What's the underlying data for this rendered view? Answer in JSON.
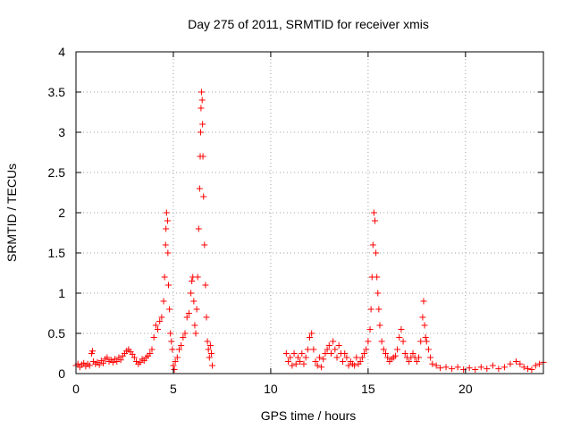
{
  "chart_data": {
    "type": "scatter",
    "title": "Day 275 of 2011, SRMTID for receiver xmis",
    "xlabel": "GPS time / hours",
    "ylabel": "SRMTID / TECUs",
    "xlim": [
      0,
      24
    ],
    "ylim": [
      0,
      4
    ],
    "xticks": [
      0,
      5,
      10,
      15,
      20
    ],
    "xtick_labels": [
      "0",
      "5",
      "10",
      "15",
      "20"
    ],
    "yticks": [
      0,
      0.5,
      1,
      1.5,
      2,
      2.5,
      3,
      3.5,
      4
    ],
    "ytick_labels": [
      "0",
      "0.5",
      "1",
      "1.5",
      "2",
      "2.5",
      "3",
      "3.5",
      "4"
    ],
    "grid": true,
    "marker": "+",
    "color": "#ff0000",
    "series": [
      {
        "name": "SRMTID",
        "points": [
          [
            0.0,
            0.1
          ],
          [
            0.1,
            0.12
          ],
          [
            0.2,
            0.08
          ],
          [
            0.3,
            0.11
          ],
          [
            0.4,
            0.13
          ],
          [
            0.5,
            0.09
          ],
          [
            0.6,
            0.12
          ],
          [
            0.7,
            0.1
          ],
          [
            0.8,
            0.25
          ],
          [
            0.85,
            0.28
          ],
          [
            0.9,
            0.15
          ],
          [
            1.0,
            0.12
          ],
          [
            1.1,
            0.14
          ],
          [
            1.2,
            0.11
          ],
          [
            1.3,
            0.16
          ],
          [
            1.4,
            0.13
          ],
          [
            1.5,
            0.18
          ],
          [
            1.6,
            0.2
          ],
          [
            1.7,
            0.15
          ],
          [
            1.8,
            0.17
          ],
          [
            1.9,
            0.14
          ],
          [
            2.0,
            0.18
          ],
          [
            2.1,
            0.15
          ],
          [
            2.2,
            0.2
          ],
          [
            2.3,
            0.17
          ],
          [
            2.4,
            0.22
          ],
          [
            2.5,
            0.25
          ],
          [
            2.6,
            0.28
          ],
          [
            2.7,
            0.3
          ],
          [
            2.8,
            0.27
          ],
          [
            2.9,
            0.24
          ],
          [
            3.0,
            0.2
          ],
          [
            3.1,
            0.15
          ],
          [
            3.2,
            0.12
          ],
          [
            3.3,
            0.14
          ],
          [
            3.4,
            0.18
          ],
          [
            3.5,
            0.16
          ],
          [
            3.6,
            0.2
          ],
          [
            3.7,
            0.22
          ],
          [
            3.8,
            0.25
          ],
          [
            3.9,
            0.3
          ],
          [
            4.0,
            0.45
          ],
          [
            4.1,
            0.6
          ],
          [
            4.2,
            0.55
          ],
          [
            4.3,
            0.65
          ],
          [
            4.4,
            0.7
          ],
          [
            4.5,
            0.9
          ],
          [
            4.55,
            1.2
          ],
          [
            4.6,
            1.6
          ],
          [
            4.62,
            1.8
          ],
          [
            4.65,
            2.0
          ],
          [
            4.7,
            1.9
          ],
          [
            4.72,
            1.5
          ],
          [
            4.75,
            1.1
          ],
          [
            4.8,
            0.8
          ],
          [
            4.85,
            0.5
          ],
          [
            4.9,
            0.4
          ],
          [
            4.95,
            0.3
          ],
          [
            5.0,
            0.1
          ],
          [
            5.05,
            0.05
          ],
          [
            5.1,
            0.15
          ],
          [
            5.2,
            0.2
          ],
          [
            5.3,
            0.3
          ],
          [
            5.4,
            0.35
          ],
          [
            5.5,
            0.45
          ],
          [
            5.6,
            0.5
          ],
          [
            5.7,
            0.7
          ],
          [
            5.8,
            0.75
          ],
          [
            5.9,
            1.0
          ],
          [
            5.95,
            1.15
          ],
          [
            6.0,
            1.2
          ],
          [
            6.05,
            0.9
          ],
          [
            6.1,
            0.6
          ],
          [
            6.15,
            0.5
          ],
          [
            6.2,
            0.8
          ],
          [
            6.25,
            1.2
          ],
          [
            6.3,
            1.8
          ],
          [
            6.35,
            2.3
          ],
          [
            6.38,
            2.7
          ],
          [
            6.4,
            3.0
          ],
          [
            6.42,
            3.3
          ],
          [
            6.45,
            3.5
          ],
          [
            6.48,
            3.4
          ],
          [
            6.5,
            3.1
          ],
          [
            6.52,
            2.7
          ],
          [
            6.55,
            2.2
          ],
          [
            6.6,
            1.6
          ],
          [
            6.65,
            1.1
          ],
          [
            6.7,
            0.7
          ],
          [
            6.75,
            0.4
          ],
          [
            6.8,
            0.3
          ],
          [
            6.85,
            0.2
          ],
          [
            6.9,
            0.35
          ],
          [
            6.95,
            0.25
          ],
          [
            7.0,
            0.1
          ],
          [
            10.8,
            0.25
          ],
          [
            10.9,
            0.15
          ],
          [
            11.0,
            0.2
          ],
          [
            11.1,
            0.1
          ],
          [
            11.2,
            0.25
          ],
          [
            11.3,
            0.12
          ],
          [
            11.4,
            0.2
          ],
          [
            11.5,
            0.15
          ],
          [
            11.6,
            0.25
          ],
          [
            11.7,
            0.12
          ],
          [
            11.8,
            0.2
          ],
          [
            11.9,
            0.3
          ],
          [
            12.0,
            0.45
          ],
          [
            12.1,
            0.5
          ],
          [
            12.2,
            0.3
          ],
          [
            12.3,
            0.15
          ],
          [
            12.4,
            0.1
          ],
          [
            12.5,
            0.2
          ],
          [
            12.6,
            0.08
          ],
          [
            12.7,
            0.18
          ],
          [
            12.8,
            0.25
          ],
          [
            12.9,
            0.3
          ],
          [
            13.0,
            0.35
          ],
          [
            13.1,
            0.25
          ],
          [
            13.2,
            0.4
          ],
          [
            13.3,
            0.3
          ],
          [
            13.4,
            0.2
          ],
          [
            13.5,
            0.35
          ],
          [
            13.6,
            0.25
          ],
          [
            13.7,
            0.15
          ],
          [
            13.8,
            0.25
          ],
          [
            13.9,
            0.2
          ],
          [
            14.0,
            0.1
          ],
          [
            14.1,
            0.15
          ],
          [
            14.2,
            0.12
          ],
          [
            14.3,
            0.1
          ],
          [
            14.4,
            0.2
          ],
          [
            14.5,
            0.12
          ],
          [
            14.6,
            0.15
          ],
          [
            14.7,
            0.2
          ],
          [
            14.8,
            0.25
          ],
          [
            14.9,
            0.3
          ],
          [
            15.0,
            0.4
          ],
          [
            15.1,
            0.55
          ],
          [
            15.15,
            0.8
          ],
          [
            15.2,
            1.2
          ],
          [
            15.25,
            1.6
          ],
          [
            15.3,
            2.0
          ],
          [
            15.35,
            1.9
          ],
          [
            15.4,
            1.5
          ],
          [
            15.45,
            1.2
          ],
          [
            15.5,
            1.0
          ],
          [
            15.55,
            0.8
          ],
          [
            15.6,
            0.6
          ],
          [
            15.7,
            0.4
          ],
          [
            15.8,
            0.3
          ],
          [
            15.9,
            0.25
          ],
          [
            16.0,
            0.2
          ],
          [
            16.1,
            0.15
          ],
          [
            16.2,
            0.18
          ],
          [
            16.3,
            0.2
          ],
          [
            16.4,
            0.22
          ],
          [
            16.5,
            0.3
          ],
          [
            16.6,
            0.45
          ],
          [
            16.7,
            0.55
          ],
          [
            16.8,
            0.4
          ],
          [
            16.9,
            0.25
          ],
          [
            17.0,
            0.2
          ],
          [
            17.1,
            0.15
          ],
          [
            17.2,
            0.2
          ],
          [
            17.3,
            0.25
          ],
          [
            17.4,
            0.2
          ],
          [
            17.5,
            0.15
          ],
          [
            17.6,
            0.2
          ],
          [
            17.7,
            0.4
          ],
          [
            17.8,
            0.7
          ],
          [
            17.85,
            0.9
          ],
          [
            17.9,
            0.6
          ],
          [
            17.95,
            0.45
          ],
          [
            18.0,
            0.4
          ],
          [
            18.1,
            0.3
          ],
          [
            18.2,
            0.2
          ],
          [
            18.3,
            0.12
          ],
          [
            18.5,
            0.1
          ],
          [
            18.7,
            0.07
          ],
          [
            19.0,
            0.08
          ],
          [
            19.3,
            0.06
          ],
          [
            19.6,
            0.08
          ],
          [
            19.9,
            0.05
          ],
          [
            20.2,
            0.07
          ],
          [
            20.5,
            0.05
          ],
          [
            20.8,
            0.08
          ],
          [
            21.1,
            0.06
          ],
          [
            21.4,
            0.1
          ],
          [
            21.7,
            0.06
          ],
          [
            22.0,
            0.08
          ],
          [
            22.3,
            0.12
          ],
          [
            22.6,
            0.15
          ],
          [
            22.8,
            0.12
          ],
          [
            23.0,
            0.08
          ],
          [
            23.2,
            0.06
          ],
          [
            23.4,
            0.05
          ],
          [
            23.6,
            0.1
          ],
          [
            23.8,
            0.12
          ],
          [
            24.0,
            0.14
          ]
        ]
      }
    ]
  }
}
